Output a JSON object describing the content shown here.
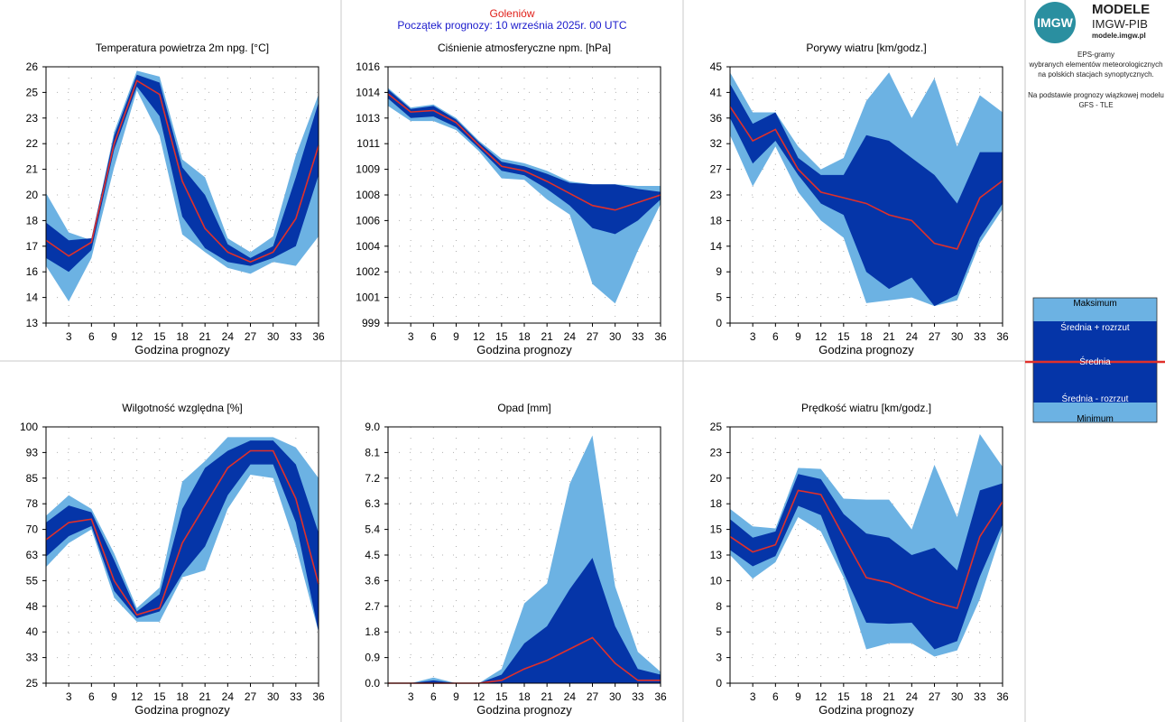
{
  "header": {
    "city": "Goleniów",
    "forecast_start": "Początek prognozy: 10 września 2025r. 00 UTC"
  },
  "logo": {
    "badge": "IMGW",
    "title": "MODELE",
    "subtitle": "IMGW-PIB",
    "url": "modele.imgw.pl"
  },
  "description": {
    "line1": "EPS-gramy",
    "line2": "wybranych elementów meteorologicznych",
    "line3": "na polskich stacjach  synoptycznych.",
    "line4": "Na podstawie prognozy wiązkowej modelu",
    "line5": "GFS - TLE"
  },
  "legend": {
    "max": "Maksimum",
    "mean_plus": "Średnia + rozrzut",
    "mean": "Średnia",
    "mean_minus": "Średnia - rozrzut",
    "min": "Minimum"
  },
  "colors": {
    "outer_band": "#6cb2e3",
    "inner_band": "#0535a8",
    "mean_line": "#e0302a",
    "grid": "#b0b0b0"
  },
  "chart_data": [
    {
      "type": "area",
      "title": "Temperatura powietrza 2m npg. [°C]",
      "xlabel": "Godzina prognozy",
      "x": [
        0,
        3,
        6,
        9,
        12,
        15,
        18,
        21,
        24,
        27,
        30,
        33,
        36
      ],
      "ylim": [
        13,
        26
      ],
      "yticks": [
        "26",
        "25",
        "23",
        "22",
        "21",
        "20",
        "18",
        "17",
        "16",
        "14",
        "13"
      ],
      "max": [
        19.6,
        17.6,
        17.2,
        22.7,
        25.8,
        25.5,
        21.3,
        20.4,
        17.3,
        16.6,
        17.4,
        21.5,
        24.6
      ],
      "mean_plus": [
        18.1,
        17.2,
        17.3,
        22.5,
        25.6,
        25.2,
        20.9,
        19.5,
        17.0,
        16.3,
        16.9,
        20.4,
        24.2
      ],
      "mean": [
        17.2,
        16.4,
        17.1,
        22.1,
        25.3,
        24.6,
        20.2,
        17.8,
        16.6,
        16.1,
        16.6,
        18.3,
        22.0
      ],
      "mean_minus": [
        16.3,
        15.6,
        16.7,
        21.8,
        25.0,
        23.5,
        18.4,
        16.8,
        16.1,
        15.9,
        16.3,
        16.9,
        20.5
      ],
      "min": [
        15.9,
        14.1,
        16.3,
        20.9,
        24.8,
        22.5,
        17.5,
        16.6,
        15.8,
        15.5,
        16.1,
        15.9,
        17.4
      ]
    },
    {
      "type": "area",
      "title": "Ciśnienie atmosferyczne npm. [hPa]",
      "xlabel": "Godzina prognozy",
      "x": [
        0,
        3,
        6,
        9,
        12,
        15,
        18,
        21,
        24,
        27,
        30,
        33,
        36
      ],
      "ylim": [
        999,
        1016
      ],
      "yticks": [
        "1016",
        "1014",
        "1013",
        "1011",
        "1009",
        "1008",
        "1006",
        "1004",
        "1002",
        "1001",
        "999"
      ],
      "max": [
        1014.6,
        1013.3,
        1013.5,
        1012.6,
        1011.1,
        1009.9,
        1009.6,
        1009.1,
        1008.4,
        1008.2,
        1008.2,
        1008.1,
        1008.1
      ],
      "mean_plus": [
        1014.5,
        1013.2,
        1013.4,
        1012.5,
        1011.0,
        1009.7,
        1009.4,
        1008.9,
        1008.3,
        1008.2,
        1008.2,
        1007.9,
        1007.7
      ],
      "mean": [
        1014.2,
        1013.0,
        1013.1,
        1012.3,
        1010.8,
        1009.4,
        1009.1,
        1008.4,
        1007.6,
        1006.8,
        1006.5,
        1007.0,
        1007.5
      ],
      "mean_minus": [
        1013.9,
        1012.6,
        1012.7,
        1012.0,
        1010.6,
        1009.1,
        1008.8,
        1007.9,
        1006.8,
        1005.3,
        1004.9,
        1005.8,
        1007.2
      ],
      "min": [
        1013.4,
        1012.4,
        1012.4,
        1011.8,
        1010.4,
        1008.6,
        1008.5,
        1007.2,
        1006.2,
        1001.6,
        1000.3,
        1003.8,
        1006.9
      ]
    },
    {
      "type": "area",
      "title": "Porywy wiatru [km/godz.]",
      "xlabel": "Godzina prognozy",
      "x": [
        0,
        3,
        6,
        9,
        12,
        15,
        18,
        21,
        24,
        27,
        30,
        33,
        36
      ],
      "ylim": [
        0,
        45
      ],
      "yticks": [
        "45",
        "41",
        "36",
        "32",
        "27",
        "23",
        "18",
        "14",
        "9",
        "5",
        "0"
      ],
      "max": [
        44,
        37,
        37,
        31,
        27,
        29,
        39,
        44,
        36,
        43,
        31,
        40,
        37
      ],
      "mean_plus": [
        42,
        35,
        37,
        29,
        26,
        26,
        33,
        32,
        29,
        26,
        21,
        30,
        30
      ],
      "mean": [
        38,
        32,
        34,
        27,
        23,
        22,
        21,
        19,
        18,
        14,
        13,
        22,
        25
      ],
      "mean_minus": [
        36,
        28,
        32,
        26,
        21,
        19,
        9,
        6,
        8,
        3,
        5,
        15,
        21
      ],
      "min": [
        33,
        24,
        31,
        23,
        18,
        15,
        3.5,
        4,
        4.5,
        3,
        4,
        14,
        20
      ]
    },
    {
      "type": "area",
      "title": "Wilgotność względna [%]",
      "xlabel": "Godzina prognozy",
      "x": [
        0,
        3,
        6,
        9,
        12,
        15,
        18,
        21,
        24,
        27,
        30,
        33,
        36
      ],
      "ylim": [
        25,
        100
      ],
      "yticks": [
        "100",
        "93",
        "85",
        "78",
        "70",
        "63",
        "55",
        "48",
        "40",
        "33",
        "25"
      ],
      "max": [
        74,
        80,
        76,
        63,
        47,
        53,
        84,
        90,
        97,
        97,
        97,
        94,
        85
      ],
      "mean_plus": [
        72,
        77,
        75,
        61,
        46,
        51,
        76,
        88,
        93,
        96,
        96,
        89,
        69
      ],
      "mean": [
        67,
        72,
        73,
        55,
        45,
        47,
        66,
        77,
        88,
        93,
        93,
        79,
        54
      ],
      "mean_minus": [
        62,
        68,
        71,
        52,
        44,
        46,
        57,
        65,
        80,
        89,
        89,
        72,
        40
      ],
      "min": [
        59,
        66,
        70,
        50,
        43,
        43,
        56,
        58,
        76,
        86,
        85,
        65,
        40
      ]
    },
    {
      "type": "area",
      "title": "Opad [mm]",
      "xlabel": "Godzina prognozy",
      "x": [
        0,
        3,
        6,
        9,
        12,
        15,
        18,
        21,
        24,
        27,
        30,
        33,
        36
      ],
      "ylim": [
        0,
        9
      ],
      "yticks": [
        "9.0",
        "8.1",
        "7.2",
        "6.3",
        "5.4",
        "4.5",
        "3.6",
        "2.7",
        "1.8",
        "0.9",
        "0.0"
      ],
      "max": [
        0,
        0,
        0.2,
        0,
        0,
        0.5,
        2.8,
        3.5,
        7.0,
        8.7,
        3.4,
        1.1,
        0.4
      ],
      "mean_plus": [
        0,
        0,
        0.1,
        0,
        0,
        0.3,
        1.4,
        2.0,
        3.3,
        4.4,
        2.0,
        0.5,
        0.3
      ],
      "mean": [
        0,
        0,
        0,
        0,
        0,
        0.1,
        0.5,
        0.8,
        1.2,
        1.6,
        0.7,
        0.1,
        0.1
      ],
      "mean_minus": [
        0,
        0,
        0,
        0,
        0,
        0,
        0,
        0,
        0,
        0,
        0,
        0,
        0
      ],
      "min": [
        0,
        0,
        0,
        0,
        0,
        0,
        0,
        0,
        0,
        0,
        0,
        0,
        0
      ]
    },
    {
      "type": "area",
      "title": "Prędkość wiatru [km/godz.]",
      "xlabel": "Godzina prognozy",
      "x": [
        0,
        3,
        6,
        9,
        12,
        15,
        18,
        21,
        24,
        27,
        30,
        33,
        36
      ],
      "ylim": [
        0,
        25
      ],
      "yticks": [
        "25",
        "23",
        "20",
        "18",
        "15",
        "13",
        "10",
        "8",
        "5",
        "3",
        "0"
      ],
      "max": [
        17.0,
        15.3,
        15.1,
        21.0,
        20.9,
        18.0,
        17.9,
        17.9,
        15.0,
        21.3,
        16.2,
        24.3,
        21.1
      ],
      "mean_plus": [
        16.0,
        14.2,
        14.8,
        20.4,
        19.9,
        16.5,
        14.6,
        14.2,
        12.5,
        13.2,
        11.0,
        18.8,
        19.5
      ],
      "mean": [
        14.3,
        12.8,
        13.5,
        18.8,
        18.4,
        14.3,
        10.3,
        9.8,
        8.8,
        7.9,
        7.3,
        14.3,
        17.7
      ],
      "mean_minus": [
        13.0,
        11.4,
        12.4,
        17.3,
        16.4,
        10.8,
        5.9,
        5.8,
        5.9,
        3.3,
        4.1,
        10.4,
        15.5
      ],
      "min": [
        12.5,
        10.2,
        11.8,
        16.2,
        14.8,
        10.3,
        3.3,
        3.9,
        3.9,
        2.6,
        3.2,
        8.2,
        15.0
      ]
    }
  ]
}
